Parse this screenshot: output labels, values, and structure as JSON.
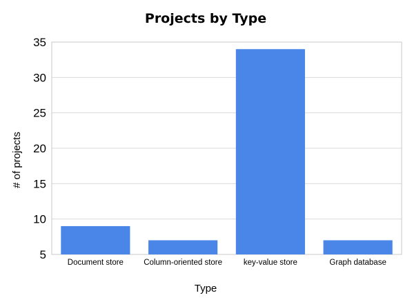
{
  "chart_data": {
    "type": "bar",
    "title": "Projects by Type",
    "xlabel": "Type",
    "ylabel": "# of projects",
    "categories": [
      "Document store",
      "Column-oriented store",
      "key-value store",
      "Graph database"
    ],
    "values": [
      9,
      7,
      34,
      7
    ],
    "ylim": [
      5,
      35
    ],
    "yticks": [
      5,
      10,
      15,
      20,
      25,
      30,
      35
    ],
    "grid": true,
    "legend": "none",
    "bar_color": "#4a86e8"
  }
}
